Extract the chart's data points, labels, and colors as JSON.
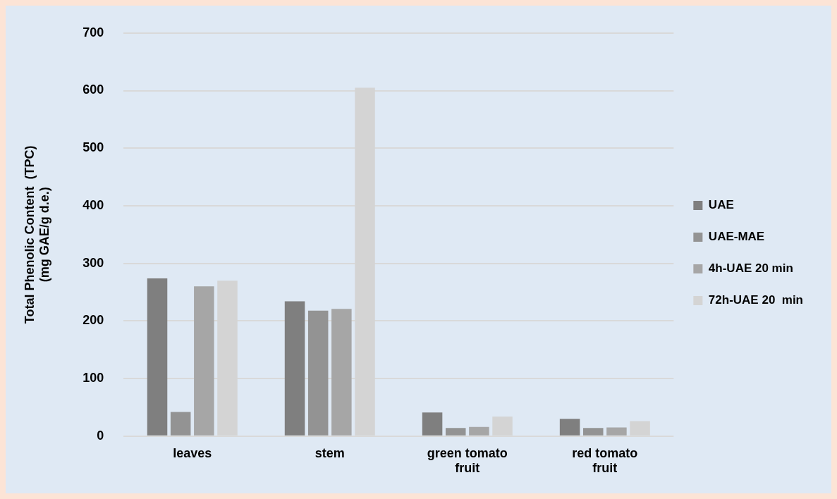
{
  "chart_data": {
    "type": "bar",
    "ylabel": "Total Phenolic Content  (TPC)\n(mg GAE/g d.e.)",
    "categories": [
      "leaves",
      "stem",
      "green tomato\nfruit",
      "red tomato\nfruit"
    ],
    "series": [
      {
        "name": "UAE",
        "color": "#7f7f7f",
        "values": [
          274,
          234,
          41,
          30
        ]
      },
      {
        "name": "UAE-MAE",
        "color": "#939393",
        "values": [
          42,
          218,
          14,
          14
        ]
      },
      {
        "name": "4h-UAE 20 min",
        "color": "#a6a6a6",
        "values": [
          260,
          221,
          16,
          15
        ]
      },
      {
        "name": "72h-UAE 20  min",
        "color": "#d4d4d4",
        "values": [
          270,
          605,
          34,
          26
        ]
      }
    ],
    "ylim": [
      0,
      700
    ],
    "yticks": [
      0,
      100,
      200,
      300,
      400,
      500,
      600,
      700
    ],
    "grid": "y",
    "legend": "right"
  }
}
